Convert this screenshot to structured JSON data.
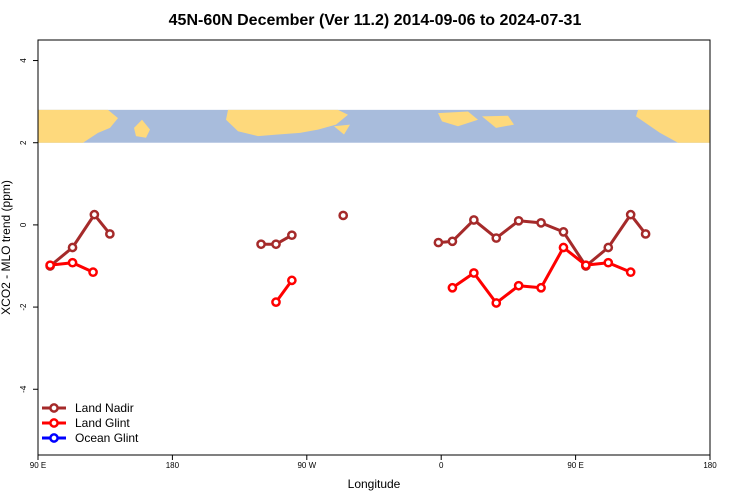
{
  "chart_data": {
    "type": "line",
    "title": "45N-60N December (Ver 11.2)   2014-09-06 to 2024-07-31",
    "xlabel": "Longitude",
    "ylabel": "XCO2 - MLO trend (ppm)",
    "xlim": [
      0,
      360
    ],
    "ylim": [
      -5.6,
      4.5
    ],
    "x_ticks": [
      {
        "value": 0,
        "label": "90 E"
      },
      {
        "value": 72,
        "label": "180"
      },
      {
        "value": 144,
        "label": "90 W"
      },
      {
        "value": 216,
        "label": "0"
      },
      {
        "value": 288,
        "label": "90 E"
      },
      {
        "value": 360,
        "label": "180"
      }
    ],
    "y_ticks": [
      {
        "value": -4,
        "label": "-4"
      },
      {
        "value": -2,
        "label": "-2"
      },
      {
        "value": 0,
        "label": "0"
      },
      {
        "value": 2,
        "label": "2"
      },
      {
        "value": 4,
        "label": "4"
      }
    ],
    "map_band": {
      "ymin": 2.0,
      "ymax": 2.8,
      "ocean_color": "#a8bcdc",
      "land_color": "#fed97c"
    },
    "legend_position": "bottom-left",
    "series": [
      {
        "name": "Land Nadir",
        "color": "#a52a2a",
        "segments": [
          [
            [
              6.5,
              -1.0
            ],
            [
              18.5,
              -0.55
            ],
            [
              30.2,
              0.25
            ],
            [
              38.5,
              -0.22
            ]
          ],
          [
            [
              119.5,
              -0.47
            ],
            [
              127.5,
              -0.47
            ],
            [
              136,
              -0.25
            ]
          ],
          [
            [
              163.5,
              0.23
            ]
          ],
          [
            [
              214.5,
              -0.43
            ],
            [
              222,
              -0.4
            ],
            [
              233.5,
              0.12
            ],
            [
              245.5,
              -0.32
            ],
            [
              257.5,
              0.1
            ],
            [
              269.5,
              0.05
            ],
            [
              281.5,
              -0.17
            ],
            [
              293.5,
              -1.0
            ],
            [
              305.5,
              -0.55
            ],
            [
              317.5,
              0.25
            ],
            [
              325.5,
              -0.22
            ]
          ]
        ]
      },
      {
        "name": "Land Glint",
        "color": "#ff0000",
        "segments": [
          [
            [
              6.5,
              -0.98
            ],
            [
              18.5,
              -0.92
            ],
            [
              29.5,
              -1.15
            ]
          ],
          [
            [
              127.5,
              -1.88
            ],
            [
              136,
              -1.35
            ]
          ],
          [
            [
              222,
              -1.53
            ],
            [
              233.5,
              -1.17
            ],
            [
              245.5,
              -1.9
            ],
            [
              257.5,
              -1.48
            ],
            [
              269.5,
              -1.53
            ],
            [
              281.5,
              -0.55
            ],
            [
              293.5,
              -0.98
            ],
            [
              305.5,
              -0.92
            ],
            [
              317.5,
              -1.15
            ]
          ]
        ]
      },
      {
        "name": "Ocean Glint",
        "color": "#0000ff",
        "segments": []
      }
    ]
  }
}
